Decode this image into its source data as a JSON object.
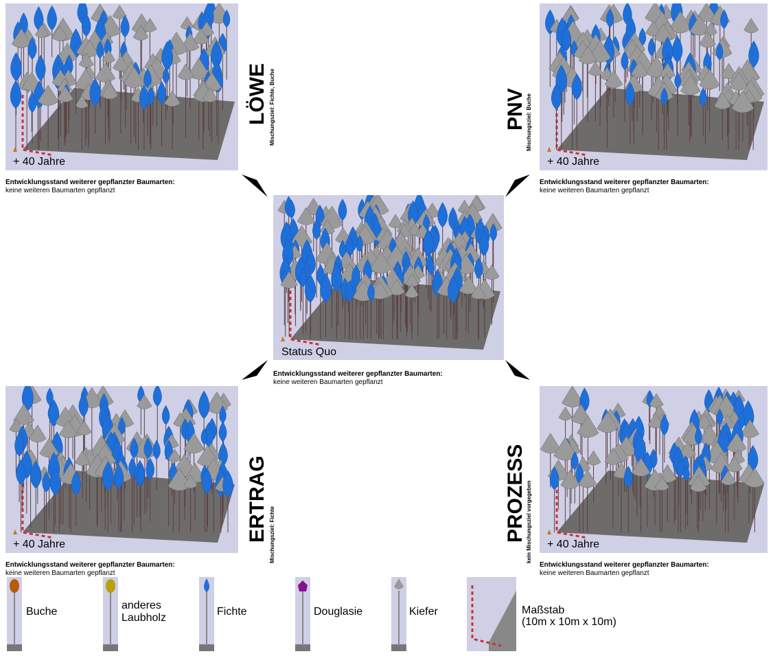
{
  "center": {
    "label": "Status Quo",
    "caption_bold": "Entwicklungsstand weiterer gepflanzter Baumarten:",
    "caption": "keine weiteren Baumarten gepflanzt"
  },
  "panels": [
    {
      "title": "LÖWE",
      "subtitle": "Mischungsziel: Fichte, Buche",
      "label": "+ 40 Jahre",
      "caption_bold": "Entwicklungsstand weiterer gepflanzter Baumarten:",
      "caption": "keine weiteren Baumarten gepflanzt"
    },
    {
      "title": "PNV",
      "subtitle": "Mischungsziel: Buche",
      "label": "+ 40 Jahre",
      "caption_bold": "Entwicklungsstand weiterer gepflanzter Baumarten:",
      "caption": "keine weiteren Baumarten gepflanzt"
    },
    {
      "title": "ERTRAG",
      "subtitle": "Mischungsziel: Fichte",
      "label": "+ 40 Jahre",
      "caption_bold": "Entwicklungsstand weiterer gepflanzter Baumarten:",
      "caption": "keine weiteren Baumarten gepflanzt"
    },
    {
      "title": "PROZESS",
      "subtitle": "kein Mischungsziel vorgegeben",
      "label": "+ 40 Jahre",
      "caption_bold": "Entwicklungsstand weiterer gepflanzter Baumarten:",
      "caption": "keine weiteren Baumarten gepflanzt"
    }
  ],
  "legend": [
    {
      "lines": [
        "Buche"
      ]
    },
    {
      "lines": [
        "anderes",
        "Laubholz"
      ]
    },
    {
      "lines": [
        "Fichte"
      ]
    },
    {
      "lines": [
        "Douglasie"
      ]
    },
    {
      "lines": [
        "Kiefer"
      ]
    },
    {
      "lines": [
        "Maßstab",
        "(10m x 10m x 10m)"
      ]
    }
  ]
}
